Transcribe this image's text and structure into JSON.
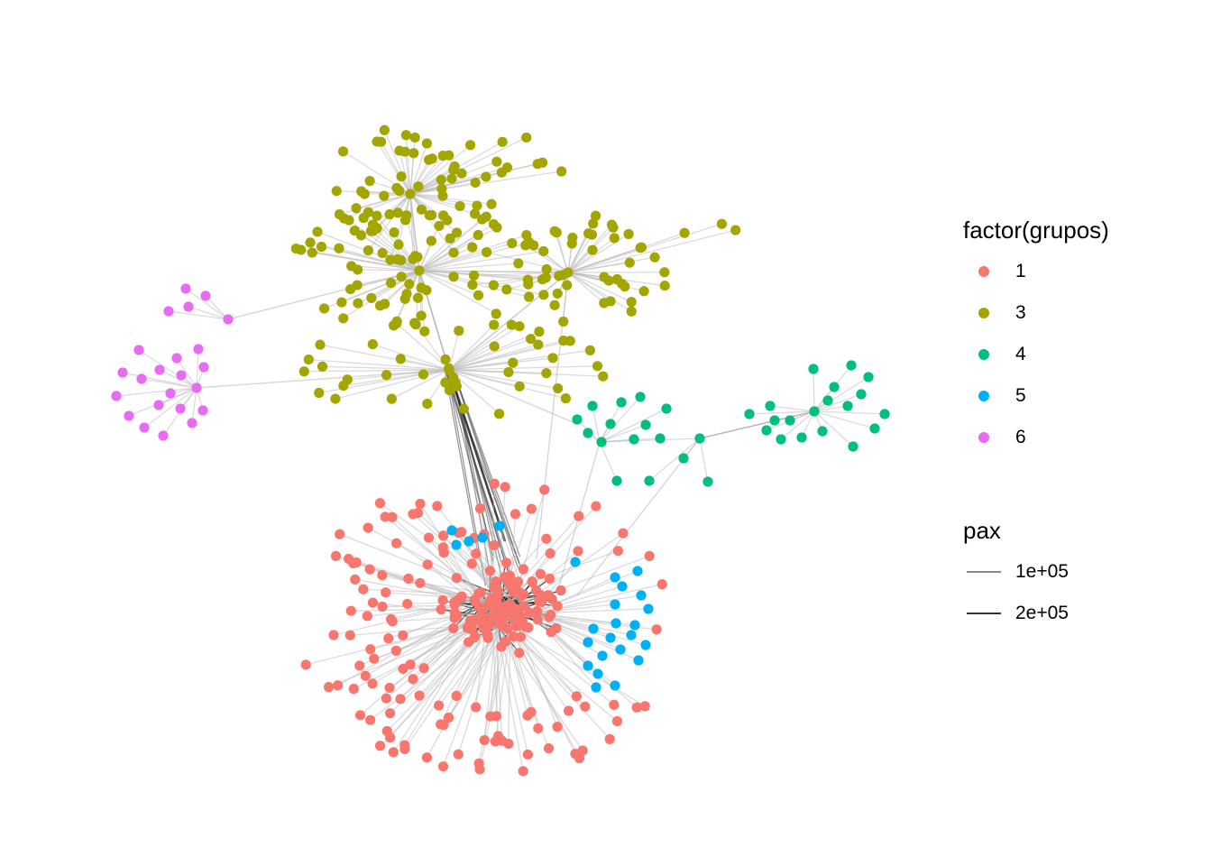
{
  "colors": {
    "background": "#ffffff",
    "edge_light": "#bdbdbd",
    "edge_dark": "#111111"
  },
  "legend_groups": {
    "title": "factor(grupos)",
    "items": [
      {
        "label": "1",
        "color": "#F8766D"
      },
      {
        "label": "3",
        "color": "#A3A500"
      },
      {
        "label": "4",
        "color": "#00BF7D"
      },
      {
        "label": "5",
        "color": "#00B0F6"
      },
      {
        "label": "6",
        "color": "#E76BF3"
      }
    ]
  },
  "legend_pax": {
    "title": "pax",
    "items": [
      {
        "label": "1e+05",
        "value": 100000,
        "color": "#8a8a8a"
      },
      {
        "label": "2e+05",
        "value": 200000,
        "color": "#333333"
      }
    ]
  },
  "network": {
    "groups": [
      {
        "id": "1",
        "color": "#F8766D",
        "node_count": 260
      },
      {
        "id": "3",
        "color": "#A3A500",
        "node_count": 225
      },
      {
        "id": "4",
        "color": "#00BF7D",
        "node_count": 32
      },
      {
        "id": "5",
        "color": "#00B0F6",
        "node_count": 26
      },
      {
        "id": "6",
        "color": "#E76BF3",
        "node_count": 22
      }
    ]
  }
}
